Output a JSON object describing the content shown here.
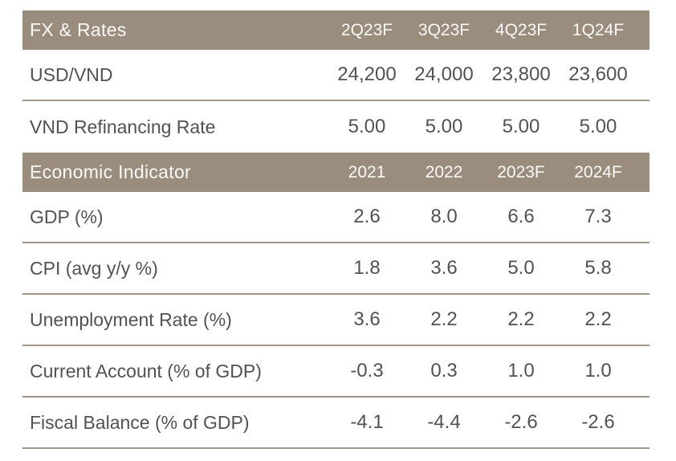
{
  "colors": {
    "header_bg": "#9B8D7D",
    "divider": "#A39688",
    "data_text": "#525254",
    "header_text": "#FAF9F7",
    "page_bg": "#FFFFFF"
  },
  "tables": [
    {
      "header": {
        "label": "FX & Rates",
        "columns": [
          "2Q23F",
          "3Q23F",
          "4Q23F",
          "1Q24F"
        ]
      },
      "rows": [
        {
          "label": "USD/VND",
          "values": [
            "24,200",
            "24,000",
            "23,800",
            "23,600"
          ]
        },
        {
          "label": "VND Refinancing Rate",
          "values": [
            "5.00",
            "5.00",
            "5.00",
            "5.00"
          ]
        }
      ]
    },
    {
      "header": {
        "label": "Economic Indicator",
        "columns": [
          "2021",
          "2022",
          "2023F",
          "2024F"
        ]
      },
      "rows": [
        {
          "label": "GDP (%)",
          "values": [
            "2.6",
            "8.0",
            "6.6",
            "7.3"
          ]
        },
        {
          "label": "CPI (avg y/y %)",
          "values": [
            "1.8",
            "3.6",
            "5.0",
            "5.8"
          ]
        },
        {
          "label": "Unemployment Rate (%)",
          "values": [
            "3.6",
            "2.2",
            "2.2",
            "2.2"
          ]
        },
        {
          "label": "Current Account (% of GDP)",
          "values": [
            "-0.3",
            "0.3",
            "1.0",
            "1.0"
          ]
        },
        {
          "label": "Fiscal Balance (% of GDP)",
          "values": [
            "-4.1",
            "-4.4",
            "-2.6",
            "-2.6"
          ]
        }
      ]
    }
  ],
  "chart_data": [
    {
      "type": "table",
      "title": "FX & Rates",
      "columns": [
        "2Q23F",
        "3Q23F",
        "4Q23F",
        "1Q24F"
      ],
      "rows": [
        {
          "label": "USD/VND",
          "values": [
            24200,
            24000,
            23800,
            23600
          ]
        },
        {
          "label": "VND Refinancing Rate",
          "values": [
            5.0,
            5.0,
            5.0,
            5.0
          ]
        }
      ]
    },
    {
      "type": "table",
      "title": "Economic Indicator",
      "columns": [
        "2021",
        "2022",
        "2023F",
        "2024F"
      ],
      "rows": [
        {
          "label": "GDP (%)",
          "values": [
            2.6,
            8.0,
            6.6,
            7.3
          ]
        },
        {
          "label": "CPI (avg y/y %)",
          "values": [
            1.8,
            3.6,
            5.0,
            5.8
          ]
        },
        {
          "label": "Unemployment Rate (%)",
          "values": [
            3.6,
            2.2,
            2.2,
            2.2
          ]
        },
        {
          "label": "Current Account (% of GDP)",
          "values": [
            -0.3,
            0.3,
            1.0,
            1.0
          ]
        },
        {
          "label": "Fiscal Balance (% of GDP)",
          "values": [
            -4.1,
            -4.4,
            -2.6,
            -2.6
          ]
        }
      ]
    }
  ]
}
